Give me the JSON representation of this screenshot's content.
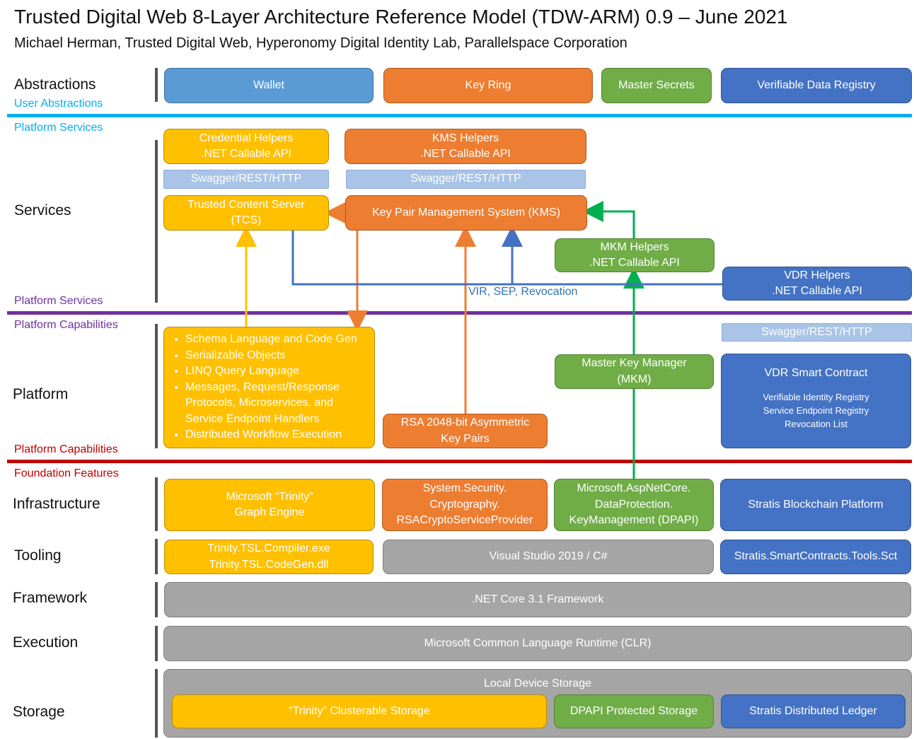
{
  "header": {
    "title": "Trusted Digital Web 8-Layer Architecture Reference Model (TDW-ARM) 0.9 – June 2021",
    "subtitle": "Michael Herman, Trusted Digital Web, Hyperonomy Digital Identity Lab, Parallelspace Corporation"
  },
  "layers": {
    "abstractions": "Abstractions",
    "services": "Services",
    "platform": "Platform",
    "infrastructure": "Infrastructure",
    "tooling": "Tooling",
    "framework": "Framework",
    "execution": "Execution",
    "storage": "Storage"
  },
  "sections": {
    "user_abstractions": "User Abstractions",
    "platform_services_top": "Platform Services",
    "platform_services_bottom": "Platform Services",
    "platform_capabilities_top": "Platform Capabilities",
    "platform_capabilities_bottom": "Platform Capabilities",
    "foundation_features": "Foundation Features"
  },
  "colors": {
    "line_abstractions": "#00b0f0",
    "line_services": "#7030a0",
    "line_platform": "#c00000",
    "text_user_abstractions": "#00b0f0",
    "text_platform_services_top": "#00b0f0",
    "text_platform_services_bottom": "#7030a0",
    "text_platform_capabilities_top": "#7030a0",
    "text_platform_capabilities_bottom": "#c00000",
    "text_foundation": "#c00000",
    "arrow_yellow": "#ffc000",
    "arrow_orange": "#ed7d31",
    "arrow_green": "#00b050",
    "arrow_blue": "#4472c4"
  },
  "abstractions": {
    "wallet": "Wallet",
    "key_ring": "Key Ring",
    "master_secrets": "Master Secrets",
    "vdr": "Verifiable Data Registry"
  },
  "services": {
    "credential_helpers_1": "Credential Helpers",
    "credential_helpers_2": ".NET Callable API",
    "kms_helpers_1": "KMS Helpers",
    "kms_helpers_2": ".NET Callable API",
    "swagger_1": "Swagger/REST/HTTP",
    "swagger_2": "Swagger/REST/HTTP",
    "tcs_1": "Trusted Content Server",
    "tcs_2": "(TCS)",
    "kms": "Key Pair Management System (KMS)",
    "mkm_helpers_1": "MKM Helpers",
    "mkm_helpers_2": ".NET Callable API",
    "vdr_helpers_1": "VDR Helpers",
    "vdr_helpers_2": ".NET Callable API",
    "arrow_label": "VIR, SEP, Revocation"
  },
  "platform": {
    "bullets": [
      "Schema Language and Code Gen",
      "Serializable Objects",
      "LINQ Query Language",
      "Messages, Request/Response Protocols, Microservices, and Service Endpoint Handlers",
      "Distributed Workflow Execution"
    ],
    "rsa_1": "RSA 2048-bit Asymmetric",
    "rsa_2": "Key Pairs",
    "mkm_1": "Master Key Manager",
    "mkm_2": "(MKM)",
    "swagger_3": "Swagger/REST/HTTP",
    "vdr_contract": "VDR Smart Contract",
    "vdr_contract_items": [
      "Verifiable Identity Registry",
      "Service Endpoint Registry",
      "Revocation List"
    ]
  },
  "infrastructure": {
    "trinity_1": "Microsoft “Trinity”",
    "trinity_2": "Graph Engine",
    "crypto_1": "System.Security.",
    "crypto_2": "Cryptography.",
    "crypto_3": "RSACryptoServiceProvider",
    "dpapi_1": "Microsoft.AspNetCore.",
    "dpapi_2": "DataProtection.",
    "dpapi_3": "KeyManagement (DPAPI)",
    "stratis": "Stratis Blockchain Platform"
  },
  "tooling": {
    "tsl_1": "Trinity.TSL.Compiler.exe",
    "tsl_2": "Trinity.TSL.CodeGen.dll",
    "vs": "Visual Studio 2019 / C#",
    "stratis_tools": "Stratis.SmartContracts.Tools.Sct"
  },
  "framework": {
    "netcore": ".NET Core 3.1 Framework"
  },
  "execution": {
    "clr": "Microsoft Common Language Runtime (CLR)"
  },
  "storage": {
    "local": "Local Device Storage",
    "trinity_storage": "“Trinity” Clusterable Storage",
    "dpapi_storage": "DPAPI Protected Storage",
    "ledger": "Stratis Distributed Ledger"
  }
}
